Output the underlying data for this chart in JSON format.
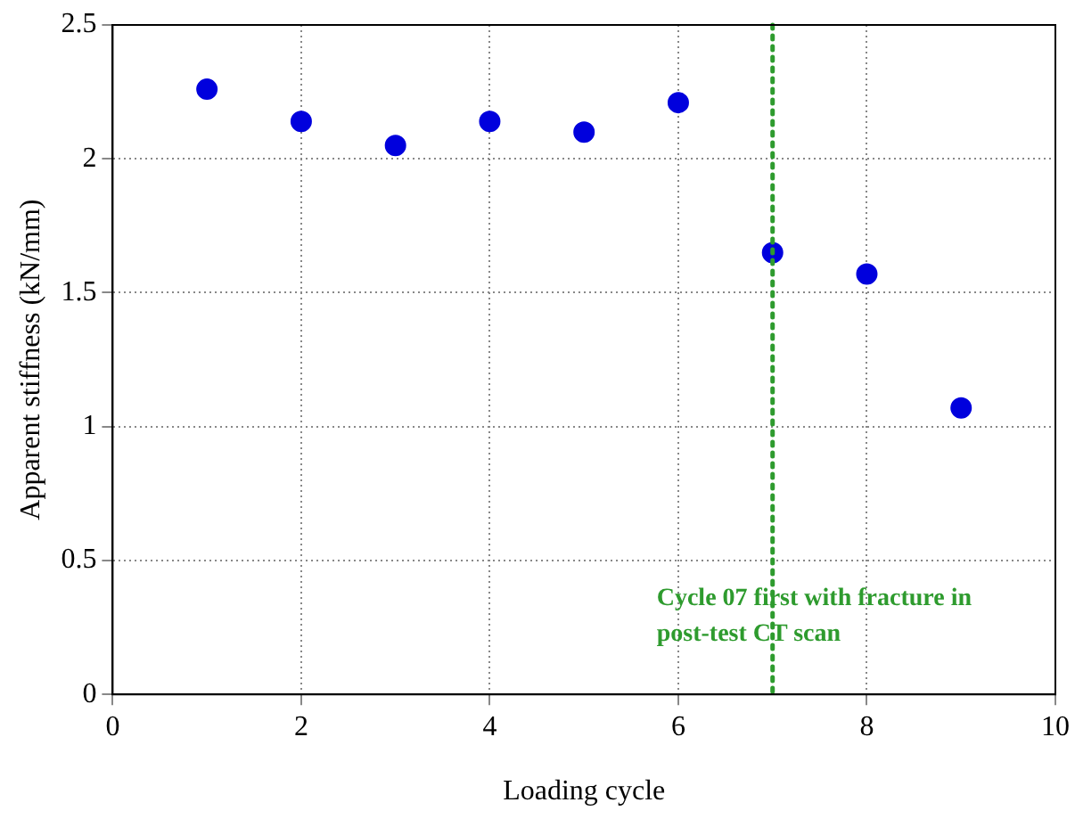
{
  "chart_data": {
    "type": "scatter",
    "xlabel": "Loading cycle",
    "ylabel": "Apparent stiffness (kN/mm)",
    "x": [
      1,
      2,
      3,
      4,
      5,
      6,
      7,
      8,
      9
    ],
    "series": [
      {
        "color": "#0000dd",
        "values": [
          2.26,
          2.14,
          2.05,
          2.14,
          2.1,
          2.21,
          1.65,
          1.57,
          1.07
        ]
      }
    ],
    "xlim": [
      0,
      10
    ],
    "xticks": [
      0,
      2,
      4,
      6,
      8,
      10
    ],
    "ylim": [
      0,
      2.5
    ],
    "yticks": [
      0,
      0.5,
      1,
      1.5,
      2,
      2.5
    ],
    "grid": true,
    "legend": false,
    "marker": "circle",
    "ref_lines": [
      {
        "axis": "x",
        "value": 7,
        "label": "Cycle 07 first with fracture in post-test CT scan",
        "color": "#2e9b2e",
        "line_style": "dotted"
      }
    ]
  }
}
